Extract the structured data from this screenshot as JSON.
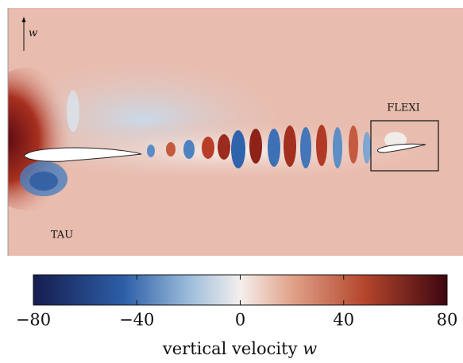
{
  "figure": {
    "arrow_label": "w",
    "left_label": "TAU",
    "box_label": "FLEXI",
    "colorbar": {
      "lim": [
        -80,
        80
      ],
      "ticks": [
        {
          "value": -80,
          "label": "−80"
        },
        {
          "value": -40,
          "label": "−40"
        },
        0,
        40,
        80
      ],
      "label": "vertical velocity",
      "label_symbol": "w"
    }
  }
}
